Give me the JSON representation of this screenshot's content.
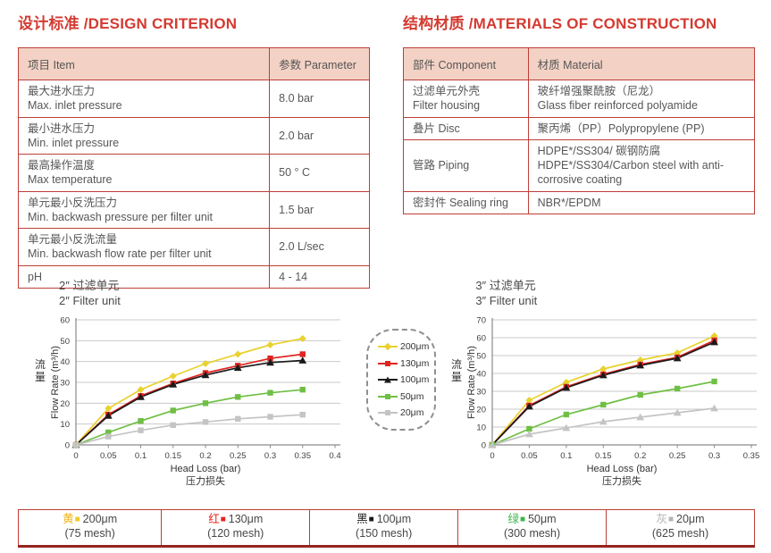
{
  "colors": {
    "title_red": "#d43a31",
    "table_border_red": "#bd3e37",
    "header_fill": "#f3d2c5",
    "mesh_bottom_border": "#96251f"
  },
  "design": {
    "title": "设计标准 /DESIGN CRITERION",
    "headers": [
      "项目 Item",
      "参数 Parameter"
    ],
    "rows": [
      {
        "item": [
          "最大进水压力",
          "Max. inlet pressure"
        ],
        "value": "8.0 bar"
      },
      {
        "item": [
          "最小进水压力",
          "Min. inlet pressure"
        ],
        "value": "2.0 bar"
      },
      {
        "item": [
          "最高操作温度",
          "Max temperature"
        ],
        "value": "50 ° C"
      },
      {
        "item": [
          "单元最小反洗压力",
          "Min. backwash pressure per filter unit"
        ],
        "value": "1.5 bar"
      },
      {
        "item": [
          "单元最小反洗流量",
          "Min. backwash flow rate per filter unit"
        ],
        "value": "2.0 L/sec"
      },
      {
        "item": [
          "pH"
        ],
        "value": "4 - 14"
      }
    ]
  },
  "materials": {
    "title": "结构材质 /MATERIALS OF CONSTRUCTION",
    "headers": [
      "部件 Component",
      "材质 Material"
    ],
    "rows": [
      {
        "component": [
          "过滤单元外壳",
          "Filter housing"
        ],
        "material": [
          "玻纤增强聚酰胺（尼龙）",
          "Glass fiber reinforced polyamide"
        ]
      },
      {
        "component": [
          "叠片 Disc"
        ],
        "material": [
          "聚丙烯（PP）Polypropylene (PP)"
        ]
      },
      {
        "component": [
          "管路 Piping"
        ],
        "material": [
          "HDPE*/SS304/ 碳钢防腐",
          "HDPE*/SS304/Carbon steel with anti-corrosive coating"
        ]
      },
      {
        "component": [
          "密封件 Sealing ring"
        ],
        "material": [
          "NBR*/EPDM"
        ]
      }
    ]
  },
  "chart_data": [
    {
      "type": "line",
      "title_zh": "2″ 过滤单元",
      "title_en": "2″ Filter unit",
      "xlabel_en": "Head Loss (bar)",
      "xlabel_zh": "压力损失",
      "ylabel_zh": "流量",
      "ylabel_en": "Flow Rate (m³/h)",
      "xlim": [
        0,
        0.4
      ],
      "ylim": [
        0,
        60
      ],
      "ytick_step": 10,
      "xticks": [
        0,
        0.05,
        0.1,
        0.15,
        0.2,
        0.25,
        0.3,
        0.35,
        0.4
      ],
      "grid": true,
      "x": [
        0,
        0.05,
        0.1,
        0.15,
        0.2,
        0.25,
        0.3,
        0.35
      ],
      "series": [
        {
          "name": "200μm",
          "color": "#e8d22e",
          "marker": "diamond",
          "values": [
            0,
            17.5,
            26.5,
            33,
            39,
            43.5,
            48,
            51
          ]
        },
        {
          "name": "130μm",
          "color": "#e02421",
          "marker": "square",
          "values": [
            0,
            14.5,
            23.5,
            29.5,
            34.5,
            38,
            41.5,
            43.5
          ]
        },
        {
          "name": "100μm",
          "color": "#1a1a1a",
          "marker": "triangle",
          "values": [
            0,
            14,
            23,
            29,
            33.5,
            37,
            39.5,
            40.5
          ]
        },
        {
          "name": "50μm",
          "color": "#6fbf44",
          "marker": "square",
          "values": [
            0,
            6,
            11.5,
            16.5,
            20,
            23,
            25,
            26.5
          ]
        },
        {
          "name": "20μm",
          "color": "#c4c4c4",
          "marker": "square",
          "values": [
            0,
            4,
            7,
            9.5,
            11,
            12.5,
            13.5,
            14.5
          ]
        }
      ]
    },
    {
      "type": "line",
      "title_zh": "3″ 过滤单元",
      "title_en": "3″ Filter unit",
      "xlabel_en": "Head Loss (bar)",
      "xlabel_zh": "压力损失",
      "ylabel_zh": "流量",
      "ylabel_en": "Flow Rate (m³/h)",
      "xlim": [
        0,
        0.35
      ],
      "ylim": [
        0,
        70
      ],
      "ytick_step": 10,
      "xticks": [
        0,
        0.05,
        0.1,
        0.15,
        0.2,
        0.25,
        0.3,
        0.35
      ],
      "grid": true,
      "x": [
        0,
        0.05,
        0.1,
        0.15,
        0.2,
        0.25,
        0.3
      ],
      "series": [
        {
          "name": "200μm",
          "color": "#e8d22e",
          "marker": "diamond",
          "values": [
            0,
            25,
            35,
            42.5,
            47.5,
            51.5,
            61
          ]
        },
        {
          "name": "130μm",
          "color": "#e02421",
          "marker": "square",
          "values": [
            0,
            22,
            32.5,
            39.5,
            45,
            49,
            58.5
          ]
        },
        {
          "name": "100μm",
          "color": "#1a1a1a",
          "marker": "triangle",
          "values": [
            0,
            21.5,
            32,
            39,
            44.5,
            48.5,
            57.5
          ]
        },
        {
          "name": "50μm",
          "color": "#6fbf44",
          "marker": "square",
          "values": [
            0,
            9,
            17,
            22.5,
            28,
            31.5,
            35.5
          ]
        },
        {
          "name": "20μm",
          "color": "#c4c4c4",
          "marker": "triangle",
          "values": [
            0,
            6,
            9.5,
            13,
            15.5,
            18,
            20.5
          ]
        }
      ]
    }
  ],
  "legend": {
    "items": [
      {
        "label": "200μm",
        "color": "#e8d22e",
        "marker": "diamond"
      },
      {
        "label": "130μm",
        "color": "#e02421",
        "marker": "square"
      },
      {
        "label": "100μm",
        "color": "#1a1a1a",
        "marker": "triangle"
      },
      {
        "label": "50μm",
        "color": "#6fbf44",
        "marker": "square"
      },
      {
        "label": "20μm",
        "color": "#c4c4c4",
        "marker": "square"
      }
    ]
  },
  "mesh_table": {
    "cells": [
      {
        "char": "黄",
        "char_color": "#efb118",
        "sq_color": "#f0c929",
        "size": "200μm",
        "mesh": "(75 mesh)"
      },
      {
        "char": "红",
        "char_color": "#e5231f",
        "sq_color": "#e5231f",
        "size": "130μm",
        "mesh": "(120 mesh)"
      },
      {
        "char": "黑",
        "char_color": "#1a1a1a",
        "sq_color": "#1a1a1a",
        "size": "100μm",
        "mesh": "(150 mesh)"
      },
      {
        "char": "绿",
        "char_color": "#3cb549",
        "sq_color": "#3cb549",
        "size": "50μm",
        "mesh": "(300 mesh)"
      },
      {
        "char": "灰",
        "char_color": "#b5b5b5",
        "sq_color": "#b5b5b5",
        "size": "20μm",
        "mesh": "(625 mesh)"
      }
    ]
  }
}
